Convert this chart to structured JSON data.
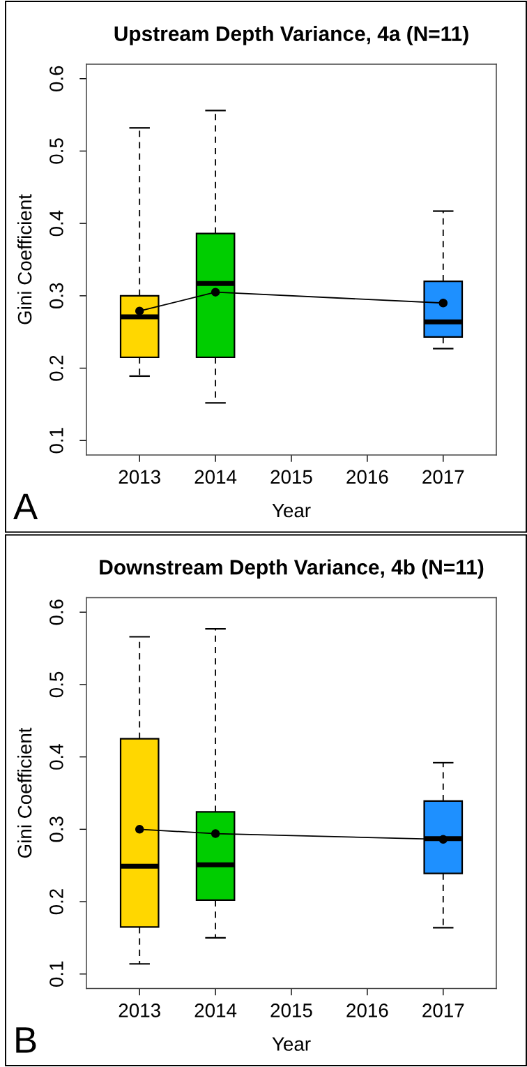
{
  "chart_data": [
    {
      "type": "box",
      "title": "Upstream Depth Variance, 4a (N=11)",
      "xlabel": "Year",
      "ylabel": "Gini Coefficient",
      "series": [
        {
          "x": [
            2013,
            2014,
            2017
          ],
          "boxes": [
            {
              "low": 0.189,
              "q1": 0.215,
              "median": 0.271,
              "q3": 0.3,
              "high": 0.532
            },
            {
              "low": 0.152,
              "q1": 0.215,
              "median": 0.317,
              "q3": 0.386,
              "high": 0.556
            },
            {
              "low": 0.227,
              "q1": 0.243,
              "median": 0.264,
              "q3": 0.32,
              "high": 0.417
            }
          ],
          "colors": [
            "#ffd700",
            "#00cd00",
            "#1e90ff"
          ]
        },
        {
          "type": "line",
          "x": [
            2013,
            2014,
            2017
          ],
          "values": [
            0.279,
            0.305,
            0.29
          ],
          "color": "#000000",
          "marker": "circle",
          "line_style": "solid"
        }
      ],
      "xlim": [
        2012.3,
        2017.7
      ],
      "xticks": [
        2013,
        2014,
        2015,
        2016,
        2017
      ],
      "ylim": [
        0.08,
        0.62
      ],
      "yticks": [
        0.1,
        0.2,
        0.3,
        0.4,
        0.5,
        0.6
      ],
      "annotations": [
        "A"
      ]
    },
    {
      "type": "box",
      "title": "Downstream Depth Variance, 4b (N=11)",
      "xlabel": "Year",
      "ylabel": "Gini Coefficient",
      "series": [
        {
          "x": [
            2013,
            2014,
            2017
          ],
          "boxes": [
            {
              "low": 0.114,
              "q1": 0.165,
              "median": 0.249,
              "q3": 0.425,
              "high": 0.566
            },
            {
              "low": 0.15,
              "q1": 0.202,
              "median": 0.251,
              "q3": 0.324,
              "high": 0.577
            },
            {
              "low": 0.164,
              "q1": 0.239,
              "median": 0.287,
              "q3": 0.339,
              "high": 0.392
            }
          ],
          "colors": [
            "#ffd700",
            "#00cd00",
            "#1e90ff"
          ]
        },
        {
          "type": "line",
          "x": [
            2013,
            2014,
            2017
          ],
          "values": [
            0.3,
            0.294,
            0.286
          ],
          "color": "#000000",
          "marker": "circle",
          "line_style": "solid"
        }
      ],
      "xlim": [
        2012.3,
        2017.7
      ],
      "xticks": [
        2013,
        2014,
        2015,
        2016,
        2017
      ],
      "ylim": [
        0.08,
        0.62
      ],
      "yticks": [
        0.1,
        0.2,
        0.3,
        0.4,
        0.5,
        0.6
      ],
      "annotations": [
        "B"
      ]
    }
  ]
}
